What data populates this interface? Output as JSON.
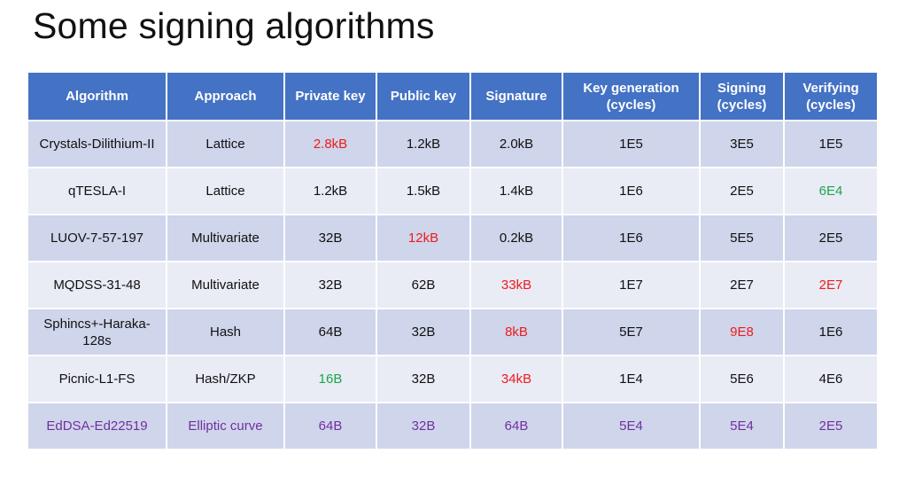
{
  "title": "Some signing algorithms",
  "table": {
    "headers": [
      "Algorithm",
      "Approach",
      "Private key",
      "Public key",
      "Signature",
      "Key generation (cycles)",
      "Signing (cycles)",
      "Verifying (cycles)"
    ],
    "rows": [
      [
        "Crystals-Dilithium-II",
        "Lattice",
        "2.8kB",
        "1.2kB",
        "2.0kB",
        "1E5",
        "3E5",
        "1E5"
      ],
      [
        "qTESLA-I",
        "Lattice",
        "1.2kB",
        "1.5kB",
        "1.4kB",
        "1E6",
        "2E5",
        "6E4"
      ],
      [
        "LUOV-7-57-197",
        "Multivariate",
        "32B",
        "12kB",
        "0.2kB",
        "1E6",
        "5E5",
        "2E5"
      ],
      [
        "MQDSS-31-48",
        "Multivariate",
        "32B",
        "62B",
        "33kB",
        "1E7",
        "2E7",
        "2E7"
      ],
      [
        "Sphincs+-Haraka-128s",
        "Hash",
        "64B",
        "32B",
        "8kB",
        "5E7",
        "9E8",
        "1E6"
      ],
      [
        "Picnic-L1-FS",
        "Hash/ZKP",
        "16B",
        "32B",
        "34kB",
        "1E4",
        "5E6",
        "4E6"
      ],
      [
        "EdDSA-Ed22519",
        "Elliptic curve",
        "64B",
        "32B",
        "64B",
        "5E4",
        "5E4",
        "2E5"
      ]
    ]
  },
  "highlight_colors": {
    "worst": "#ee1c1c",
    "best": "#18a84a",
    "classical_reference_row": "#7030a0",
    "header_background": "#4472c4"
  }
}
